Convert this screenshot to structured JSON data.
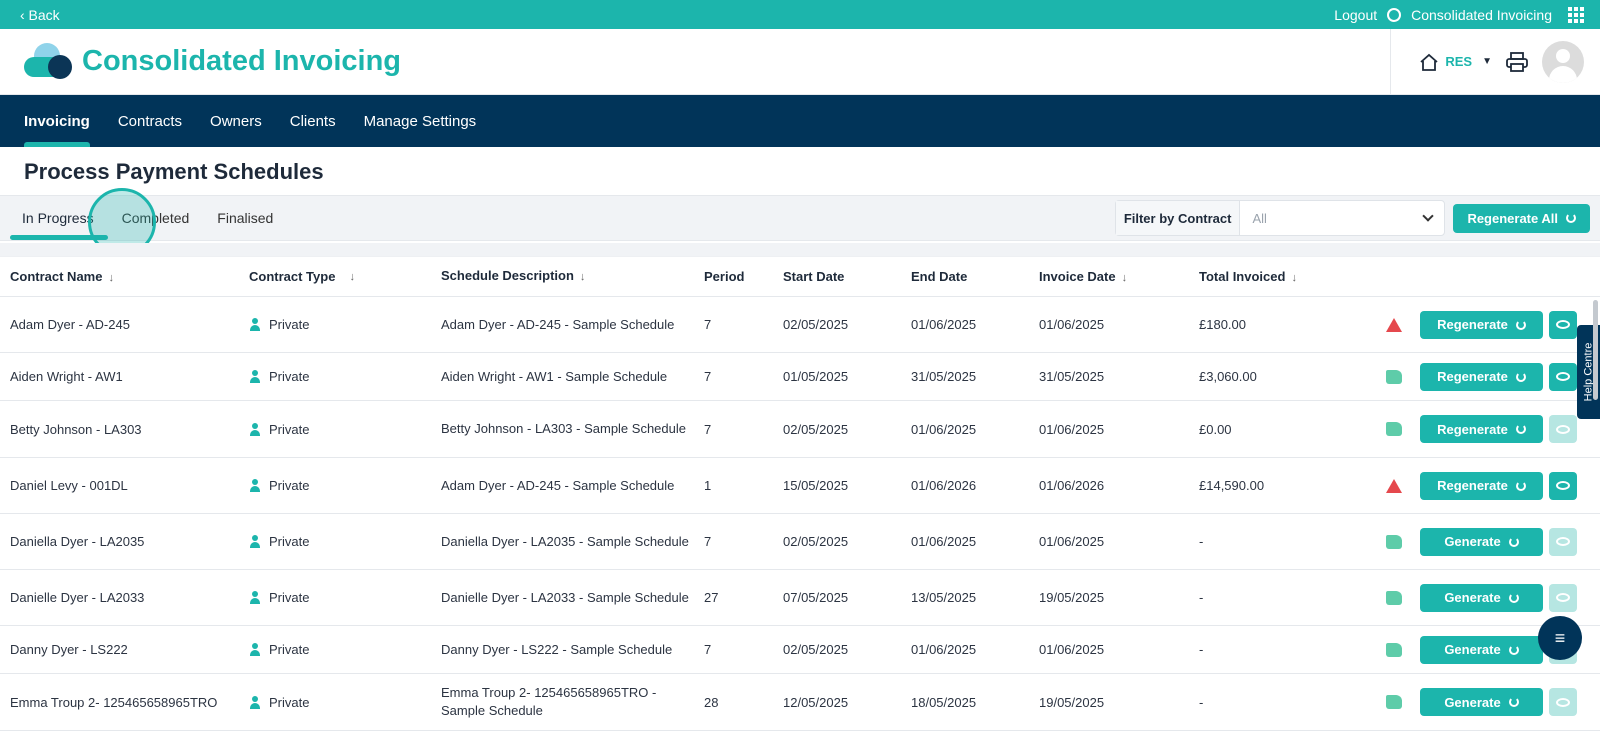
{
  "topbar": {
    "back": "‹ Back",
    "logout": "Logout",
    "app_name": "Consolidated Invoicing"
  },
  "header": {
    "title": "Consolidated Invoicing",
    "res": "RES"
  },
  "nav": [
    "Invoicing",
    "Contracts",
    "Owners",
    "Clients",
    "Manage Settings"
  ],
  "page": {
    "title": "Process Payment Schedules"
  },
  "tabs": [
    "In Progress",
    "Completed",
    "Finalised"
  ],
  "filter": {
    "label": "Filter by Contract",
    "value": "All"
  },
  "regenerate_all": "Regenerate All",
  "columns": [
    "Contract Name",
    "Contract Type",
    "Schedule Description",
    "Period",
    "Start Date",
    "End Date",
    "Invoice Date",
    "Total Invoiced"
  ],
  "rows": [
    {
      "name": "Adam Dyer - AD-245",
      "type": "Private",
      "desc": "Adam Dyer - AD-245 - Sample Schedule",
      "period": "7",
      "start": "02/05/2025",
      "end": "01/06/2025",
      "invoice": "01/06/2025",
      "total": "£180.00",
      "status": "warning",
      "action": "Regenerate",
      "view_enabled": true
    },
    {
      "name": "Aiden Wright - AW1",
      "type": "Private",
      "desc": "Aiden Wright - AW1 - Sample Schedule",
      "period": "7",
      "start": "01/05/2025",
      "end": "31/05/2025",
      "invoice": "31/05/2025",
      "total": "£3,060.00",
      "status": "ok",
      "action": "Regenerate",
      "view_enabled": true
    },
    {
      "name": "Betty Johnson - LA303",
      "type": "Private",
      "desc": "Betty Johnson - LA303 - Sample Schedule",
      "period": "7",
      "start": "02/05/2025",
      "end": "01/06/2025",
      "invoice": "01/06/2025",
      "total": "£0.00",
      "status": "ok",
      "action": "Regenerate",
      "view_enabled": false
    },
    {
      "name": "Daniel Levy - 001DL",
      "type": "Private",
      "desc": "Adam Dyer - AD-245 - Sample Schedule",
      "period": "1",
      "start": "15/05/2025",
      "end": "01/06/2026",
      "invoice": "01/06/2026",
      "total": "£14,590.00",
      "status": "warning",
      "action": "Regenerate",
      "view_enabled": true
    },
    {
      "name": "Daniella Dyer - LA2035",
      "type": "Private",
      "desc": "Daniella Dyer - LA2035 - Sample Schedule",
      "period": "7",
      "start": "02/05/2025",
      "end": "01/06/2025",
      "invoice": "01/06/2025",
      "total": "-",
      "status": "ok",
      "action": "Generate",
      "view_enabled": false
    },
    {
      "name": "Danielle Dyer - LA2033",
      "type": "Private",
      "desc": "Danielle Dyer - LA2033 - Sample Schedule",
      "period": "27",
      "start": "07/05/2025",
      "end": "13/05/2025",
      "invoice": "19/05/2025",
      "total": "-",
      "status": "ok",
      "action": "Generate",
      "view_enabled": false
    },
    {
      "name": "Danny Dyer - LS222",
      "type": "Private",
      "desc": "Danny Dyer - LS222 - Sample Schedule",
      "period": "7",
      "start": "02/05/2025",
      "end": "01/06/2025",
      "invoice": "01/06/2025",
      "total": "-",
      "status": "ok",
      "action": "Generate",
      "view_enabled": false
    },
    {
      "name": "Emma Troup 2- 125465658965TRO",
      "type": "Private",
      "desc": "Emma Troup 2- 125465658965TRO - Sample Schedule",
      "period": "28",
      "start": "12/05/2025",
      "end": "18/05/2025",
      "invoice": "19/05/2025",
      "total": "-",
      "status": "ok",
      "action": "Generate",
      "view_enabled": false
    }
  ],
  "help": "Help Centre",
  "colors": {
    "teal": "#1cb5ac",
    "navy": "#013459",
    "warning": "#e5484d",
    "ok": "#4cc7a0"
  }
}
